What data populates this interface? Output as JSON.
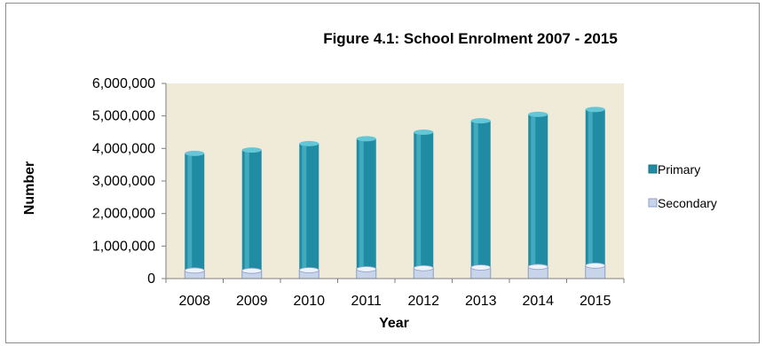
{
  "chart_data": {
    "type": "bar",
    "title": "Figure 4.1: School Enrolment 2007 - 2015",
    "xlabel": "Year",
    "ylabel": "Number",
    "categories": [
      "2008",
      "2009",
      "2010",
      "2011",
      "2012",
      "2013",
      "2014",
      "2015"
    ],
    "series": [
      {
        "name": "Primary",
        "color": "#1f8ca3",
        "values": [
          3850000,
          3950000,
          4150000,
          4300000,
          4500000,
          4850000,
          5050000,
          5200000
        ]
      },
      {
        "name": "Secondary",
        "color": "#c8d4ea",
        "values": [
          250000,
          240000,
          260000,
          290000,
          320000,
          340000,
          360000,
          400000
        ]
      }
    ],
    "ylim": [
      0,
      6000000
    ],
    "yticks": [
      "0",
      "1,000,000",
      "2,000,000",
      "3,000,000",
      "4,000,000",
      "5,000,000",
      "6,000,000"
    ],
    "legend_position": "right",
    "plot_background": "#f0ebd8"
  }
}
